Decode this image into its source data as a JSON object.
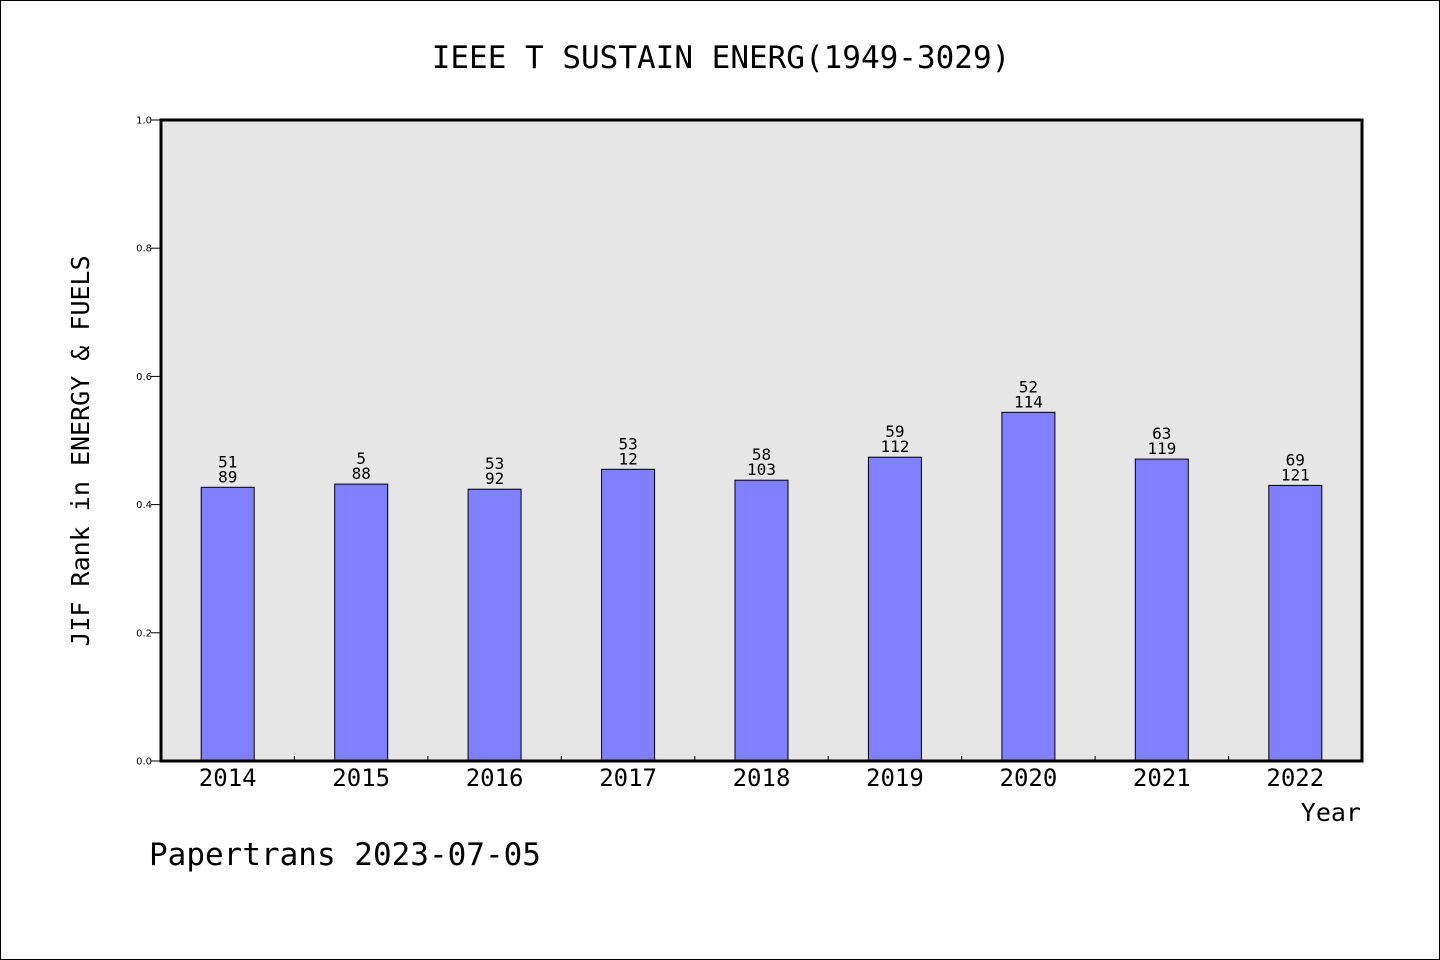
{
  "chart_data": {
    "type": "bar",
    "title": "IEEE T SUSTAIN ENERG(1949-3029)",
    "xlabel": "Year",
    "ylabel": "JIF Rank in ENERGY & FUELS",
    "ylim": [
      0.0,
      1.0
    ],
    "yticks": [
      "0.0",
      "0.2",
      "0.4",
      "0.6",
      "0.8",
      "1.0"
    ],
    "categories": [
      "2014",
      "2015",
      "2016",
      "2017",
      "2018",
      "2019",
      "2020",
      "2021",
      "2022"
    ],
    "values": [
      0.427,
      0.432,
      0.424,
      0.455,
      0.438,
      0.474,
      0.544,
      0.471,
      0.43
    ],
    "labels_top": [
      "51",
      "5",
      "53",
      "53",
      "58",
      "59",
      "52",
      "63",
      "69"
    ],
    "labels_bottom": [
      "89",
      "88",
      "92",
      "12",
      "103",
      "112",
      "114",
      "119",
      "121"
    ],
    "bar_color": "#8080ff",
    "plot_background": "#e6e6e6",
    "grid": false,
    "legend": "none"
  },
  "footer": {
    "source": "Papertrans 2023-07-05"
  }
}
